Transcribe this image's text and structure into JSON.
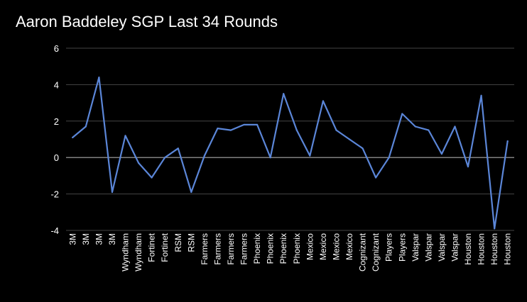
{
  "chart_data": {
    "type": "line",
    "title": "Aaron Baddeley SGP Last 34 Rounds",
    "xlabel": "",
    "ylabel": "",
    "ylim": [
      -4,
      6
    ],
    "yticks": [
      -4,
      -2,
      0,
      2,
      4,
      6
    ],
    "grid": true,
    "legend": "none",
    "categories": [
      "3M",
      "3M",
      "3M",
      "3M",
      "Wyndham",
      "Wyndham",
      "Fortinet",
      "Fortinet",
      "RSM",
      "RSM",
      "Farmers",
      "Farmers",
      "Farmers",
      "Farmers",
      "Phoenix",
      "Phoenix",
      "Phoenix",
      "Phoenix",
      "Mexico",
      "Mexico",
      "Mexico",
      "Mexico",
      "Cognizant",
      "Cognizant",
      "Players",
      "Players",
      "Valspar",
      "Valspar",
      "Valspar",
      "Valspar",
      "Houston",
      "Houston",
      "Houston",
      "Houston"
    ],
    "series": [
      {
        "values": [
          1.1,
          1.7,
          4.4,
          -1.9,
          1.2,
          -0.3,
          -1.1,
          0.0,
          0.5,
          -1.9,
          0.1,
          1.6,
          1.5,
          1.8,
          1.8,
          0.0,
          3.5,
          1.5,
          0.1,
          3.1,
          1.5,
          1.0,
          0.5,
          -1.1,
          0.0,
          2.4,
          1.7,
          1.5,
          0.2,
          1.7,
          -0.5,
          3.4,
          -3.9,
          0.9
        ],
        "color": "#5b86d8"
      }
    ],
    "colors": {
      "background": "#000000",
      "grid": "#444444",
      "zero_line": "#aaaaaa",
      "text": "#ffffff"
    }
  }
}
